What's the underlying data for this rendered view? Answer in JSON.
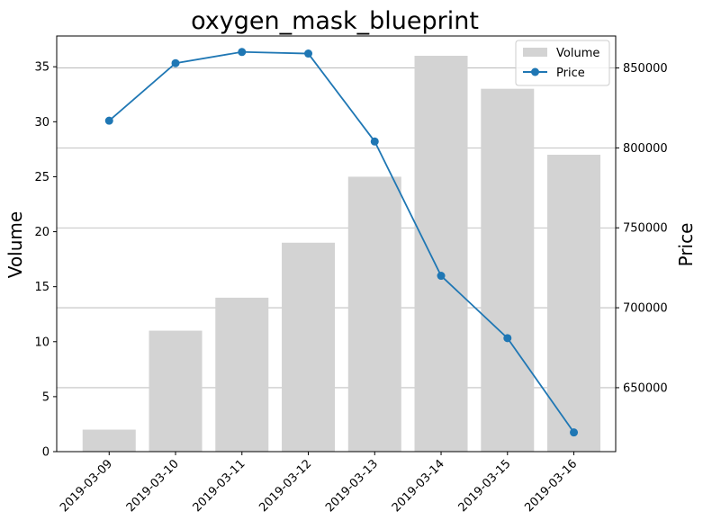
{
  "chart_data": {
    "type": "bar+line",
    "title": "oxygen_mask_blueprint",
    "categories": [
      "2019-03-09",
      "2019-03-10",
      "2019-03-11",
      "2019-03-12",
      "2019-03-13",
      "2019-03-14",
      "2019-03-15",
      "2019-03-16"
    ],
    "series": [
      {
        "name": "Volume",
        "type": "bar",
        "axis": "left",
        "color": "#d3d3d3",
        "values": [
          2,
          11,
          14,
          19,
          25,
          36,
          33,
          27
        ]
      },
      {
        "name": "Price",
        "type": "line",
        "axis": "right",
        "color": "#1f77b4",
        "values": [
          817000,
          853000,
          860000,
          859000,
          804000,
          720000,
          681000,
          622000
        ]
      }
    ],
    "ylabel_left": "Volume",
    "ylabel_right": "Price",
    "ylim_left": [
      0,
      37.8
    ],
    "ylim_right": [
      610000,
      870000
    ],
    "yticks_left": [
      0,
      5,
      10,
      15,
      20,
      25,
      30,
      35
    ],
    "yticks_right": [
      650000,
      700000,
      750000,
      800000,
      850000
    ],
    "grid": "horizontal (right axis)",
    "legend": "top-right",
    "xtick_rotation": 45
  }
}
